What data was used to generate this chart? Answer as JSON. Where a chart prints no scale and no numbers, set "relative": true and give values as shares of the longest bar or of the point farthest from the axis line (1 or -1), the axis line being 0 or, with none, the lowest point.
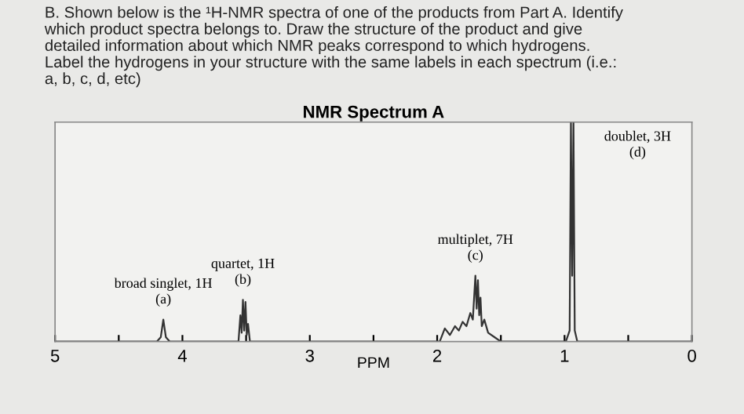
{
  "chart_data": {
    "type": "line",
    "title": "NMR Spectrum A",
    "xlabel": "PPM",
    "relative": true,
    "annotations": [
      "B. Shown below is the ¹H-NMR spectra of one of the products from Part A. Identify\nwhich product spectra belongs to. Draw the structure of the product and give\ndetailed information about which NMR peaks correspond to which hydrogens.\nLabel the hydrogens in your structure with the same labels in each spectrum (i.e.:\na, b, c, d, etc)",
      {
        "text": "broad singlet, 1H\n(a)",
        "x": 4.15,
        "y": 0.1
      },
      {
        "text": "quartet, 1H\n(b)",
        "x": 3.525,
        "y": 0.19
      },
      {
        "text": "multiplet, 7H\n(c)",
        "x": 1.7,
        "y": 0.3
      },
      {
        "text": "doublet, 3H\n(d)",
        "x": 0.94,
        "y": 1
      }
    ],
    "xlim": [
      5,
      0
    ],
    "xticks": [
      5,
      {
        "value": 4.5,
        "label": null
      },
      4,
      {
        "value": 3.5,
        "label": null
      },
      3,
      {
        "value": 2.5,
        "label": null
      },
      2,
      {
        "value": 1.5,
        "label": null
      },
      1,
      {
        "value": 0.5,
        "label": null
      },
      0
    ],
    "tick_labels": "x",
    "series": [
      {
        "color": "#333333",
        "x": [
          5.0,
          4.2,
          4.17,
          4.15,
          4.13,
          4.1,
          3.56,
          3.545,
          3.535,
          3.525,
          3.515,
          3.505,
          3.495,
          3.485,
          3.47,
          1.98,
          1.94,
          1.9,
          1.86,
          1.83,
          1.8,
          1.77,
          1.74,
          1.72,
          1.7,
          1.69,
          1.68,
          1.67,
          1.66,
          1.65,
          1.63,
          1.6,
          1.55,
          1.5,
          0.99,
          0.96,
          0.95,
          0.94,
          0.93,
          0.92,
          0.9,
          0.0
        ],
        "values": [
          0,
          0,
          0.02,
          0.1,
          0.02,
          0,
          0,
          0.12,
          0.04,
          0.19,
          0.05,
          0.18,
          0.03,
          0.08,
          0,
          0,
          0.06,
          0.03,
          0.07,
          0.05,
          0.09,
          0.07,
          0.13,
          0.1,
          0.3,
          0.15,
          0.28,
          0.12,
          0.2,
          0.07,
          0.1,
          0.04,
          0.02,
          0,
          0,
          0.05,
          1,
          0.3,
          1,
          0.05,
          0,
          0
        ]
      }
    ]
  }
}
